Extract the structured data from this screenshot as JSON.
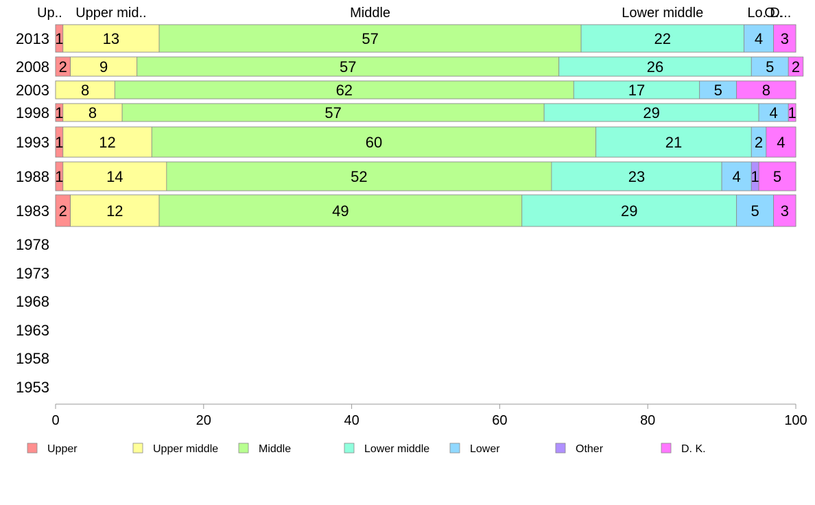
{
  "chart_data": {
    "type": "bar",
    "orientation": "horizontal",
    "stacked": true,
    "title": "",
    "xlabel": "",
    "ylabel": "",
    "xlim": [
      0,
      100
    ],
    "xticks": [
      0,
      20,
      40,
      60,
      80,
      100
    ],
    "categories": [
      "2013",
      "2008",
      "2003",
      "1998",
      "1993",
      "1988",
      "1983",
      "1978",
      "1973",
      "1968",
      "1963",
      "1958",
      "1953"
    ],
    "series": [
      {
        "name": "Upper",
        "color": "#ff8f8f",
        "values": [
          1,
          2,
          0,
          1,
          1,
          1,
          2,
          null,
          null,
          null,
          null,
          null,
          null
        ]
      },
      {
        "name": "Upper middle",
        "color": "#ffff99",
        "values": [
          13,
          9,
          8,
          8,
          12,
          14,
          12,
          null,
          null,
          null,
          null,
          null,
          null
        ]
      },
      {
        "name": "Middle",
        "color": "#b8ff90",
        "values": [
          57,
          57,
          62,
          57,
          60,
          52,
          49,
          null,
          null,
          null,
          null,
          null,
          null
        ]
      },
      {
        "name": "Lower middle",
        "color": "#90ffdd",
        "values": [
          22,
          26,
          17,
          29,
          21,
          23,
          29,
          null,
          null,
          null,
          null,
          null,
          null
        ]
      },
      {
        "name": "Lower",
        "color": "#90d8ff",
        "values": [
          4,
          5,
          5,
          4,
          2,
          4,
          5,
          null,
          null,
          null,
          null,
          null,
          null
        ]
      },
      {
        "name": "Other",
        "color": "#b090ff",
        "values": [
          0,
          0,
          0,
          0,
          0,
          1,
          0,
          null,
          null,
          null,
          null,
          null,
          null
        ]
      },
      {
        "name": "D. K.",
        "color": "#ff77ff",
        "values": [
          3,
          2,
          8,
          1,
          4,
          5,
          3,
          null,
          null,
          null,
          null,
          null,
          null
        ]
      }
    ],
    "top_labels": [
      "Up..",
      "Upper mid..",
      "Middle",
      "Lower middle",
      "Lo..",
      "O..",
      "D..."
    ],
    "legend": {
      "placement": "bottom",
      "entries": [
        "Upper",
        "Upper middle",
        "Middle",
        "Lower middle",
        "Lower",
        "Other",
        "D. K."
      ]
    },
    "grid": false
  }
}
